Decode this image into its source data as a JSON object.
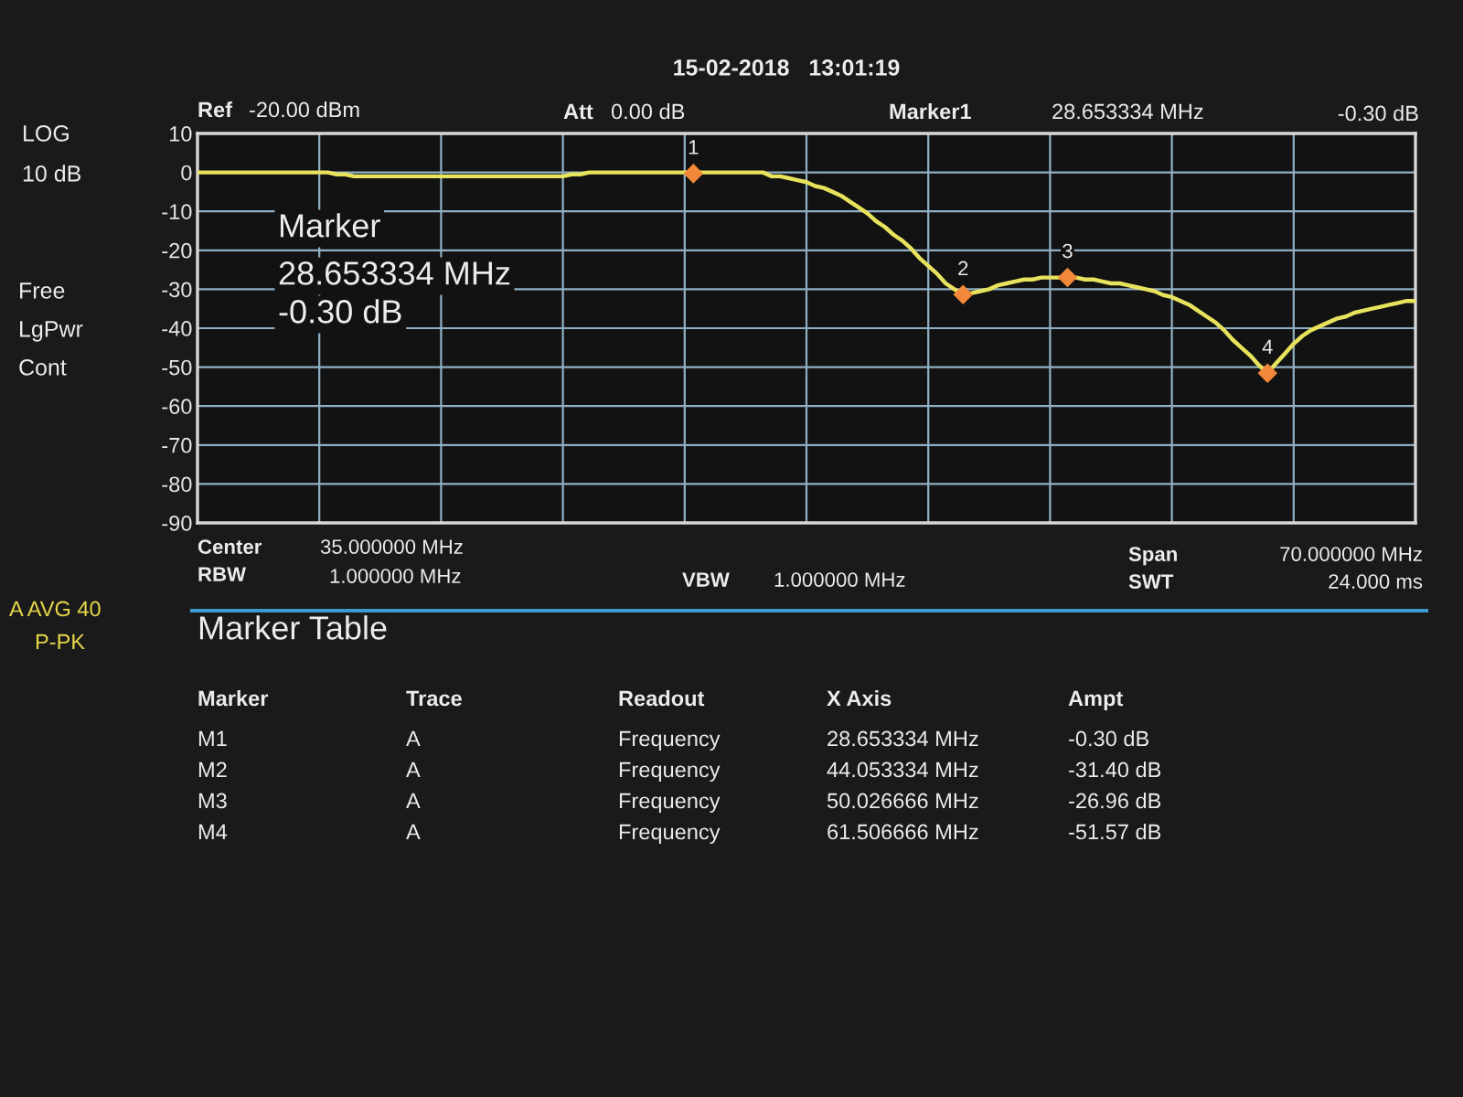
{
  "chart_data": {
    "type": "line",
    "categories": [
      null,
      null,
      null,
      null,
      null,
      null,
      null,
      null,
      null,
      null,
      null,
      null,
      null,
      null,
      null,
      null,
      null,
      null,
      null,
      null,
      null,
      null,
      null,
      null,
      null,
      null,
      null,
      null,
      null,
      null,
      null,
      null,
      null,
      null,
      null,
      null,
      null,
      null,
      null,
      null,
      null,
      null,
      null,
      null,
      null,
      null,
      null,
      null,
      null,
      null,
      null,
      null,
      null,
      null,
      null,
      null,
      null,
      null,
      null,
      null,
      null,
      null,
      null,
      null,
      null,
      null,
      null,
      null,
      null,
      null,
      null,
      null,
      null,
      null,
      null,
      null,
      null,
      null,
      null,
      null,
      null,
      null,
      null,
      null,
      null,
      null,
      null,
      null,
      null,
      null,
      null,
      null,
      null,
      null,
      null,
      null,
      null,
      null,
      null,
      null,
      null,
      null,
      null,
      null,
      null,
      null,
      null,
      null,
      null,
      null,
      null,
      null,
      null,
      null,
      null,
      null,
      null,
      null,
      null,
      null,
      null,
      null,
      null,
      null,
      null,
      null,
      null,
      null,
      null,
      null,
      null,
      null,
      null,
      null,
      null,
      null,
      null,
      null,
      null,
      null,
      null
    ],
    "ylim": [
      -90,
      10
    ],
    "yticks": [
      10,
      0,
      -10,
      -20,
      -30,
      -40,
      -50,
      -60,
      -70,
      -80,
      -90
    ],
    "tick_labels": "y",
    "grid": true,
    "series": [
      {
        "color": "#e8e35c",
        "values": [
          0,
          0,
          0,
          0,
          0,
          0,
          0,
          0,
          0,
          0,
          0,
          0,
          0,
          0,
          0,
          0,
          -0.5,
          -0.5,
          -1,
          -1,
          -1,
          -1,
          -1,
          -1,
          -1,
          -1,
          -1,
          -1,
          -1,
          -1,
          -1,
          -1,
          -1,
          -1,
          -1,
          -1,
          -1,
          -1,
          -1,
          -1,
          -1,
          -1,
          -1,
          -0.5,
          -0.5,
          0,
          0,
          0,
          0,
          0,
          0,
          0,
          0,
          0,
          0,
          0,
          0,
          0,
          0,
          0,
          0,
          0,
          0,
          0,
          0,
          0,
          -1,
          -1,
          -1.5,
          -2,
          -2.5,
          -3.5,
          -4,
          -5,
          -6,
          -7.5,
          -9,
          -10.5,
          -12.5,
          -14,
          -16,
          -17.5,
          -19.5,
          -22,
          -24,
          -26,
          -28.5,
          -30,
          -31.5,
          -31,
          -30.5,
          -30,
          -29,
          -28.5,
          -28,
          -27.5,
          -27.5,
          -27,
          -27,
          -27,
          -27,
          -27,
          -27.5,
          -27.5,
          -28,
          -28.5,
          -28.5,
          -29,
          -29.5,
          -30,
          -30.5,
          -31.5,
          -32,
          -33,
          -34,
          -35.5,
          -37,
          -38.5,
          -40.5,
          -43,
          -45,
          -47,
          -49.5,
          -51.5,
          -49,
          -46.5,
          -44,
          -42,
          -40.5,
          -39.5,
          -38.5,
          -37.5,
          -37,
          -36,
          -35.5,
          -35,
          -34.5,
          -34,
          -33.5,
          -33,
          -33
        ]
      },
      {
        "type": "scatter",
        "color": "#f2883a",
        "marker": "diamond",
        "values": [
          null,
          null,
          null,
          null,
          null,
          null,
          null,
          null,
          null,
          null,
          null,
          null,
          null,
          null,
          null,
          null,
          null,
          null,
          null,
          null,
          null,
          null,
          null,
          null,
          null,
          null,
          null,
          null,
          null,
          null,
          null,
          null,
          null,
          null,
          null,
          null,
          null,
          null,
          null,
          null,
          null,
          null,
          null,
          null,
          null,
          null,
          null,
          null,
          null,
          null,
          null,
          null,
          null,
          null,
          null,
          null,
          null,
          -0.3,
          null,
          null,
          null,
          null,
          null,
          null,
          null,
          null,
          null,
          null,
          null,
          null,
          null,
          null,
          null,
          null,
          null,
          null,
          null,
          null,
          null,
          null,
          null,
          null,
          null,
          null,
          null,
          null,
          null,
          null,
          -31.4,
          null,
          null,
          null,
          null,
          null,
          null,
          null,
          null,
          null,
          null,
          null,
          -26.96,
          null,
          null,
          null,
          null,
          null,
          null,
          null,
          null,
          null,
          null,
          null,
          null,
          null,
          null,
          null,
          null,
          null,
          null,
          null,
          null,
          null,
          null,
          -51.57,
          null,
          null,
          null,
          null,
          null,
          null,
          null,
          null,
          null,
          null,
          null,
          null,
          null,
          null,
          null,
          null,
          null
        ]
      }
    ],
    "annotations": [
      "15-02-2018   13:01:19",
      "Ref",
      "-20.00 dBm",
      "Att",
      "0.00 dB",
      "Marker1",
      "28.653334 MHz",
      "-0.30 dB",
      "LOG",
      "10 dB",
      "Free",
      "LgPwr",
      "Cont",
      "A AVG 40",
      "P-PK",
      "Marker",
      "28.653334 MHz",
      "-0.30 dB",
      "Center",
      "35.000000 MHz",
      "RBW",
      "1.000000 MHz",
      "VBW",
      "1.000000 MHz",
      "Span",
      "70.000000 MHz",
      "SWT",
      "24.000 ms",
      "Marker Table",
      "Marker",
      "Trace",
      "Readout",
      "X Axis",
      "Ampt",
      "M1",
      "A",
      "Frequency",
      "28.653334 MHz",
      "-0.30 dB",
      "M2",
      "A",
      "Frequency",
      "44.053334 MHz",
      "-31.40 dB",
      "M3",
      "A",
      "Frequency",
      "50.026666 MHz",
      "-26.96 dB",
      "M4",
      "A",
      "Frequency",
      "61.506666 MHz",
      "-51.57 dB",
      {
        "text": "1",
        "y": -0.3
      },
      {
        "text": "2",
        "y": -31.4
      },
      {
        "text": "3",
        "y": -26.96
      },
      {
        "text": "4",
        "y": -51.57
      }
    ]
  }
}
